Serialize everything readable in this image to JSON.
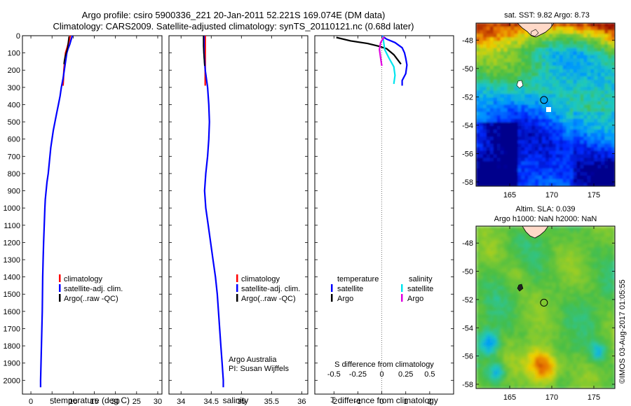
{
  "header": {
    "line1": "Argo profile: csiro 5900336_221 20-Jan-2011 52.221S 169.074E (DM data)",
    "line2": "Climatology: CARS2009. Satellite-adjusted climatology: synTS_20110121.nc (0.68d later)"
  },
  "credit": {
    "line1": "Argo Australia",
    "line2": "PI: Susan Wijffels",
    "stamp": "©IMOS 03-Aug-2017 01:05:55"
  },
  "colors": {
    "climatology": "#ff0000",
    "satellite": "#0000ff",
    "argo": "#000000",
    "sal_satellite": "#00e5ee",
    "sal_argo": "#e000e0",
    "land": "#ffd9c8"
  },
  "chart_data": [
    {
      "type": "line",
      "xlabel": "temperature (deg C)",
      "ylabel": "",
      "xlim": [
        -2,
        31
      ],
      "ylim": [
        2080,
        0
      ],
      "xticks": [
        0,
        5,
        10,
        15,
        20,
        25,
        30
      ],
      "yticks": [
        0,
        100,
        200,
        300,
        400,
        500,
        600,
        700,
        800,
        900,
        1000,
        1100,
        1200,
        1300,
        1400,
        1500,
        1600,
        1700,
        1800,
        1900,
        2000
      ],
      "legend": [
        "climatology",
        "satellite-adj. clim.",
        "Argo(..raw -QC)"
      ],
      "legend_position": "lower-center",
      "series": [
        {
          "name": "climatology",
          "color": "#ff0000",
          "points": [
            [
              9.3,
              0
            ],
            [
              9.1,
              25
            ],
            [
              8.8,
              50
            ],
            [
              8.5,
              75
            ],
            [
              8.2,
              100
            ],
            [
              8.0,
              150
            ],
            [
              7.8,
              200
            ],
            [
              7.7,
              250
            ],
            [
              7.6,
              290
            ]
          ]
        },
        {
          "name": "satellite-adj. clim.",
          "color": "#0000ff",
          "points": [
            [
              9.8,
              0
            ],
            [
              9.5,
              25
            ],
            [
              9.2,
              50
            ],
            [
              8.8,
              75
            ],
            [
              8.5,
              100
            ],
            [
              8.2,
              150
            ],
            [
              7.9,
              200
            ],
            [
              7.6,
              250
            ],
            [
              7.2,
              300
            ],
            [
              6.9,
              350
            ],
            [
              6.5,
              400
            ],
            [
              6.1,
              450
            ],
            [
              5.7,
              500
            ],
            [
              5.3,
              550
            ],
            [
              5.0,
              600
            ],
            [
              4.7,
              650
            ],
            [
              4.5,
              700
            ],
            [
              4.3,
              750
            ],
            [
              4.1,
              800
            ],
            [
              3.8,
              850
            ],
            [
              3.6,
              900
            ],
            [
              3.4,
              950
            ],
            [
              3.3,
              1000
            ],
            [
              3.15,
              1100
            ],
            [
              3.0,
              1200
            ],
            [
              2.9,
              1300
            ],
            [
              2.8,
              1400
            ],
            [
              2.75,
              1500
            ],
            [
              2.7,
              1600
            ],
            [
              2.6,
              1700
            ],
            [
              2.5,
              1800
            ],
            [
              2.4,
              1900
            ],
            [
              2.3,
              2000
            ],
            [
              2.3,
              2040
            ]
          ]
        },
        {
          "name": "Argo(..raw -QC)",
          "color": "#000000",
          "points": [
            [
              9.0,
              5
            ],
            [
              8.9,
              25
            ],
            [
              8.8,
              45
            ],
            [
              8.7,
              70
            ],
            [
              8.4,
              95
            ],
            [
              8.1,
              120
            ],
            [
              7.9,
              145
            ],
            [
              7.8,
              165
            ]
          ]
        }
      ]
    },
    {
      "type": "line",
      "xlabel": "salinity",
      "ylabel": "",
      "xlim": [
        33.8,
        36.1
      ],
      "ylim": [
        2080,
        0
      ],
      "xticks": [
        34,
        34.5,
        35,
        35.5,
        36
      ],
      "legend": [
        "climatology",
        "satellite-adj. clim.",
        "Argo(..raw -QC)"
      ],
      "legend_position": "lower-center",
      "series": [
        {
          "name": "climatology",
          "color": "#ff0000",
          "points": [
            [
              34.4,
              0
            ],
            [
              34.4,
              100
            ],
            [
              34.4,
              200
            ],
            [
              34.4,
              290
            ]
          ]
        },
        {
          "name": "satellite-adj. clim.",
          "color": "#0000ff",
          "points": [
            [
              34.38,
              0
            ],
            [
              34.38,
              100
            ],
            [
              34.4,
              200
            ],
            [
              34.44,
              300
            ],
            [
              34.46,
              400
            ],
            [
              34.47,
              500
            ],
            [
              34.46,
              600
            ],
            [
              34.44,
              700
            ],
            [
              34.41,
              800
            ],
            [
              34.39,
              900
            ],
            [
              34.41,
              1000
            ],
            [
              34.45,
              1100
            ],
            [
              34.49,
              1200
            ],
            [
              34.53,
              1300
            ],
            [
              34.57,
              1400
            ],
            [
              34.6,
              1500
            ],
            [
              34.62,
              1600
            ],
            [
              34.64,
              1700
            ],
            [
              34.66,
              1800
            ],
            [
              34.68,
              1900
            ],
            [
              34.7,
              2000
            ],
            [
              34.7,
              2040
            ]
          ]
        },
        {
          "name": "Argo(..raw -QC)",
          "color": "#000000",
          "points": [
            [
              34.37,
              0
            ],
            [
              34.37,
              60
            ],
            [
              34.38,
              120
            ],
            [
              34.39,
              175
            ]
          ]
        }
      ]
    },
    {
      "type": "line",
      "title": "",
      "xlabel": "T difference from climatology",
      "xlabel_top": "S difference from climatology",
      "xlim": [
        -2.8,
        3.0
      ],
      "ylim": [
        2080,
        0
      ],
      "xticks_T": [
        -2,
        -1,
        0,
        1,
        2
      ],
      "xticks_S_labels": [
        "-0.5",
        "-0.25",
        "0",
        "0.25",
        "0.5"
      ],
      "xticks_S_positions_T": [
        -2,
        -1,
        0,
        1,
        2
      ],
      "legend": {
        "temperature_header": "temperature",
        "salinity_header": "salinity",
        "temperature": [
          "satellite",
          "Argo"
        ],
        "salinity": [
          "satellite",
          "Argo"
        ]
      },
      "series": [
        {
          "name": "temperature satellite",
          "color": "#0000ff",
          "points": [
            [
              0.0,
              0
            ],
            [
              0.2,
              20
            ],
            [
              0.55,
              40
            ],
            [
              0.85,
              70
            ],
            [
              0.95,
              100
            ],
            [
              1.0,
              130
            ],
            [
              1.05,
              170
            ],
            [
              1.0,
              220
            ],
            [
              0.85,
              260
            ],
            [
              0.85,
              290
            ]
          ]
        },
        {
          "name": "temperature Argo",
          "color": "#000000",
          "points": [
            [
              -1.9,
              10
            ],
            [
              -1.3,
              30
            ],
            [
              -0.6,
              45
            ],
            [
              -0.15,
              60
            ],
            [
              0.2,
              75
            ],
            [
              0.5,
              110
            ],
            [
              0.8,
              165
            ]
          ]
        },
        {
          "name": "salinity satellite",
          "color": "#00e5ee",
          "points": [
            [
              0.05,
              0
            ],
            [
              0.08,
              40
            ],
            [
              0.12,
              80
            ],
            [
              0.3,
              130
            ],
            [
              0.5,
              180
            ],
            [
              0.55,
              230
            ],
            [
              0.5,
              280
            ]
          ]
        },
        {
          "name": "salinity Argo",
          "color": "#e000e0",
          "points": [
            [
              0.1,
              5
            ],
            [
              -0.05,
              40
            ],
            [
              -0.1,
              80
            ],
            [
              -0.05,
              130
            ],
            [
              0.0,
              175
            ]
          ]
        }
      ]
    },
    {
      "type": "heatmap",
      "title": "sat. SST: 9.82 Argo: 8.73",
      "xlim": [
        161,
        177.5
      ],
      "ylim": [
        -58.3,
        -46.8
      ],
      "xticks": [
        165,
        170,
        175
      ],
      "yticks": [
        -48,
        -50,
        -52,
        -54,
        -56,
        -58
      ],
      "argo_position": [
        169.074,
        -52.221
      ]
    },
    {
      "type": "heatmap",
      "title_line1": "Altim. SLA: 0.039",
      "title_line2": "Argo h1000: NaN h2000: NaN",
      "xlim": [
        161,
        177.5
      ],
      "ylim": [
        -58.3,
        -46.8
      ],
      "xticks": [
        165,
        170,
        175
      ],
      "yticks": [
        -48,
        -50,
        -52,
        -54,
        -56,
        -58
      ],
      "argo_position": [
        169.074,
        -52.221
      ]
    }
  ]
}
